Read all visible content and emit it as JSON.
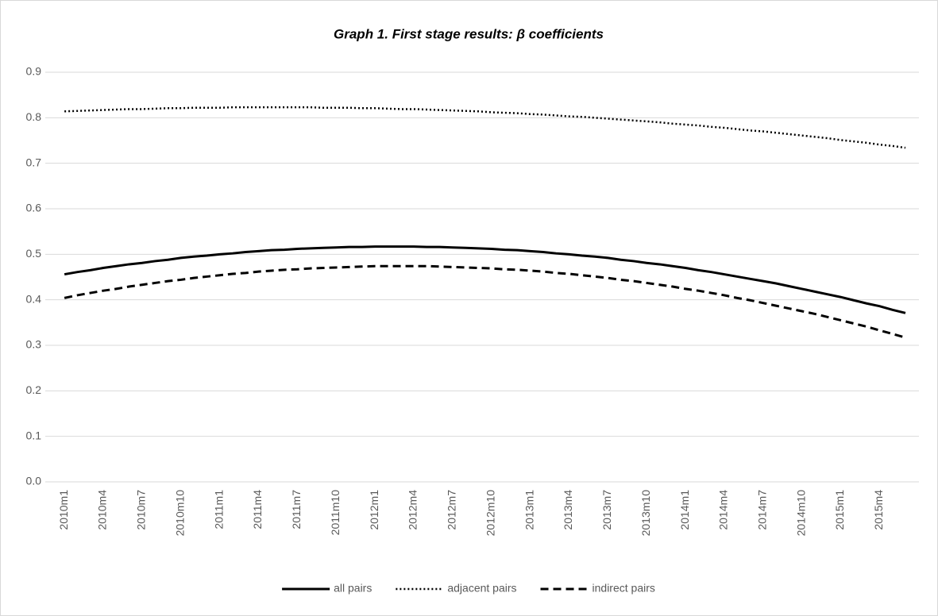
{
  "chart_data": {
    "type": "line",
    "title": "Graph 1. First stage results: β coefficients",
    "categories": [
      "2010m1",
      null,
      null,
      "2010m4",
      null,
      null,
      "2010m7",
      null,
      null,
      "2010m10",
      null,
      null,
      "2011m1",
      null,
      null,
      "2011m4",
      null,
      null,
      "2011m7",
      null,
      null,
      "2011m10",
      null,
      null,
      "2012m1",
      null,
      null,
      "2012m4",
      null,
      null,
      "2012m7",
      null,
      null,
      "2012m10",
      null,
      null,
      "2013m1",
      null,
      null,
      "2013m4",
      null,
      null,
      "2013m7",
      null,
      null,
      "2013m10",
      null,
      null,
      "2014m1",
      null,
      null,
      "2014m4",
      null,
      null,
      "2014m7",
      null,
      null,
      "2014m10",
      null,
      null,
      "2015m1",
      null,
      null,
      "2015m4",
      null,
      null
    ],
    "series": [
      {
        "name": "all pairs",
        "color": "#000000",
        "line_style": "solid",
        "values": [
          0.456,
          0.461,
          0.465,
          0.47,
          0.474,
          0.478,
          0.481,
          0.485,
          0.488,
          0.492,
          0.495,
          0.497,
          0.5,
          0.502,
          0.505,
          0.507,
          0.509,
          0.51,
          0.512,
          0.513,
          0.514,
          0.515,
          0.516,
          0.516,
          0.517,
          0.517,
          0.517,
          0.517,
          0.516,
          0.516,
          0.515,
          0.514,
          0.513,
          0.512,
          0.51,
          0.509,
          0.507,
          0.505,
          0.502,
          0.5,
          0.497,
          0.495,
          0.492,
          0.488,
          0.485,
          0.481,
          0.478,
          0.474,
          0.47,
          0.465,
          0.461,
          0.456,
          0.451,
          0.446,
          0.441,
          0.436,
          0.43,
          0.424,
          0.418,
          0.412,
          0.406,
          0.399,
          0.392,
          0.386,
          0.378,
          0.371
        ]
      },
      {
        "name": "adjacent pairs",
        "color": "#000000",
        "line_style": "dotted",
        "values": [
          0.814,
          0.815,
          0.816,
          0.817,
          0.818,
          0.819,
          0.819,
          0.82,
          0.821,
          0.821,
          0.822,
          0.822,
          0.822,
          0.823,
          0.823,
          0.823,
          0.823,
          0.823,
          0.823,
          0.823,
          0.822,
          0.822,
          0.822,
          0.821,
          0.821,
          0.82,
          0.819,
          0.819,
          0.818,
          0.817,
          0.816,
          0.815,
          0.814,
          0.812,
          0.811,
          0.81,
          0.808,
          0.807,
          0.805,
          0.803,
          0.802,
          0.8,
          0.798,
          0.796,
          0.794,
          0.792,
          0.79,
          0.787,
          0.785,
          0.783,
          0.78,
          0.778,
          0.775,
          0.772,
          0.77,
          0.767,
          0.764,
          0.761,
          0.758,
          0.755,
          0.751,
          0.748,
          0.745,
          0.741,
          0.738,
          0.734
        ]
      },
      {
        "name": "indirect pairs",
        "color": "#000000",
        "line_style": "dashed",
        "values": [
          0.404,
          0.41,
          0.415,
          0.42,
          0.424,
          0.429,
          0.433,
          0.437,
          0.441,
          0.444,
          0.448,
          0.451,
          0.454,
          0.457,
          0.459,
          0.462,
          0.464,
          0.466,
          0.467,
          0.469,
          0.47,
          0.471,
          0.472,
          0.473,
          0.474,
          0.474,
          0.474,
          0.474,
          0.474,
          0.473,
          0.472,
          0.471,
          0.47,
          0.469,
          0.467,
          0.466,
          0.464,
          0.462,
          0.459,
          0.457,
          0.454,
          0.451,
          0.448,
          0.444,
          0.441,
          0.437,
          0.433,
          0.429,
          0.424,
          0.42,
          0.415,
          0.41,
          0.404,
          0.399,
          0.393,
          0.387,
          0.381,
          0.375,
          0.369,
          0.362,
          0.355,
          0.348,
          0.341,
          0.333,
          0.325,
          0.317
        ]
      }
    ],
    "ylim": [
      0,
      0.9
    ],
    "yticks": [
      {
        "value": 0,
        "label": "0.0"
      },
      0.1,
      0.2,
      0.3,
      0.4,
      0.5,
      0.6,
      0.7,
      0.8,
      0.9
    ],
    "grid": true,
    "legend": "bottom"
  }
}
